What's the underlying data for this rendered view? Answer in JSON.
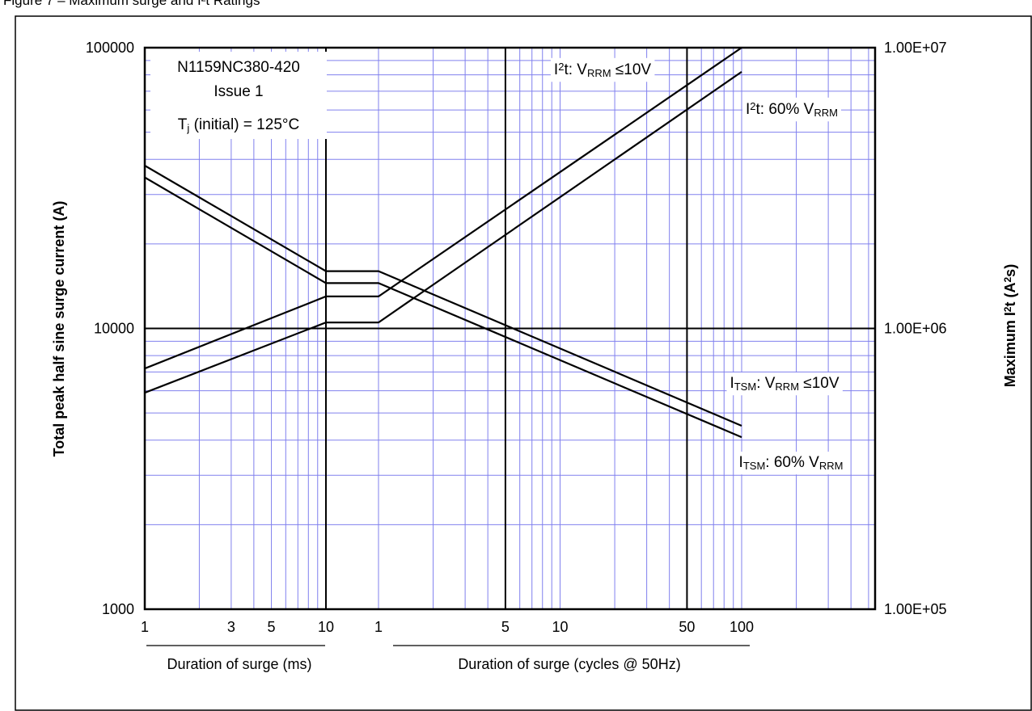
{
  "figure": {
    "title": "Figure 7 – Maximum surge and I²t Ratings"
  },
  "chart_data": {
    "type": "line",
    "y_left_label": "Total peak half sine surge current (A)",
    "y_right_label": "Maximum I²t (A²s)",
    "y_left_scale": "log",
    "y_left_range": [
      1000,
      100000
    ],
    "y_left_ticks": [
      "1000",
      "10000",
      "100000"
    ],
    "y_right_scale": "log",
    "y_right_range": [
      100000,
      10000000
    ],
    "y_right_ticks": [
      "1.00E+05",
      "1.00E+06",
      "1.00E+07"
    ],
    "x_axes": [
      {
        "label": "Duration of surge (ms)",
        "scale": "log",
        "range": [
          1,
          10
        ],
        "ticks": [
          "1",
          "3",
          "5",
          "10"
        ]
      },
      {
        "label": "Duration of surge (cycles @ 50Hz)",
        "scale": "log",
        "range": [
          1,
          100
        ],
        "ticks": [
          "1",
          "5",
          "10",
          "50",
          "100"
        ]
      }
    ],
    "grid": true,
    "info_box": [
      "N1159NC380-420",
      "Issue 1"
    ],
    "condition": {
      "sym": "T",
      "sub": "j",
      "text": " (initial) = 125°C"
    },
    "series": [
      {
        "name": "I²t: VRRM ≤10V",
        "axis": "right",
        "label": {
          "pre": "I",
          "sup": "2",
          "mid": "t: V",
          "sub": "RRM",
          "post": " ≤10V"
        },
        "ms_points": [
          [
            1,
            720000
          ],
          [
            10,
            1300000
          ]
        ],
        "cycle_points": [
          [
            1,
            1300000
          ],
          [
            100,
            10000000
          ]
        ]
      },
      {
        "name": "I²t: 60% VRRM",
        "axis": "right",
        "label": {
          "pre": "I",
          "sup": "2",
          "mid": "t: 60% V",
          "sub": "RRM",
          "post": ""
        },
        "ms_points": [
          [
            1,
            590000
          ],
          [
            10,
            1050000
          ]
        ],
        "cycle_points": [
          [
            1,
            1050000
          ],
          [
            100,
            8200000
          ]
        ]
      },
      {
        "name": "ITSM: VRRM ≤10V",
        "axis": "left",
        "label": {
          "pre": "I",
          "sub": "TSM",
          "mid": ": V",
          "sub2": "RRM",
          "post": " ≤10V"
        },
        "ms_points": [
          [
            1,
            38000
          ],
          [
            10,
            16000
          ]
        ],
        "cycle_points": [
          [
            1,
            16000
          ],
          [
            100,
            4500
          ]
        ]
      },
      {
        "name": "ITSM: 60% VRRM",
        "axis": "left",
        "label": {
          "pre": "I",
          "sub": "TSM",
          "mid": ": 60% V",
          "sub2": "RRM",
          "post": ""
        },
        "ms_points": [
          [
            1,
            34500
          ],
          [
            10,
            14500
          ]
        ],
        "cycle_points": [
          [
            1,
            14500
          ],
          [
            100,
            4100
          ]
        ]
      }
    ]
  }
}
